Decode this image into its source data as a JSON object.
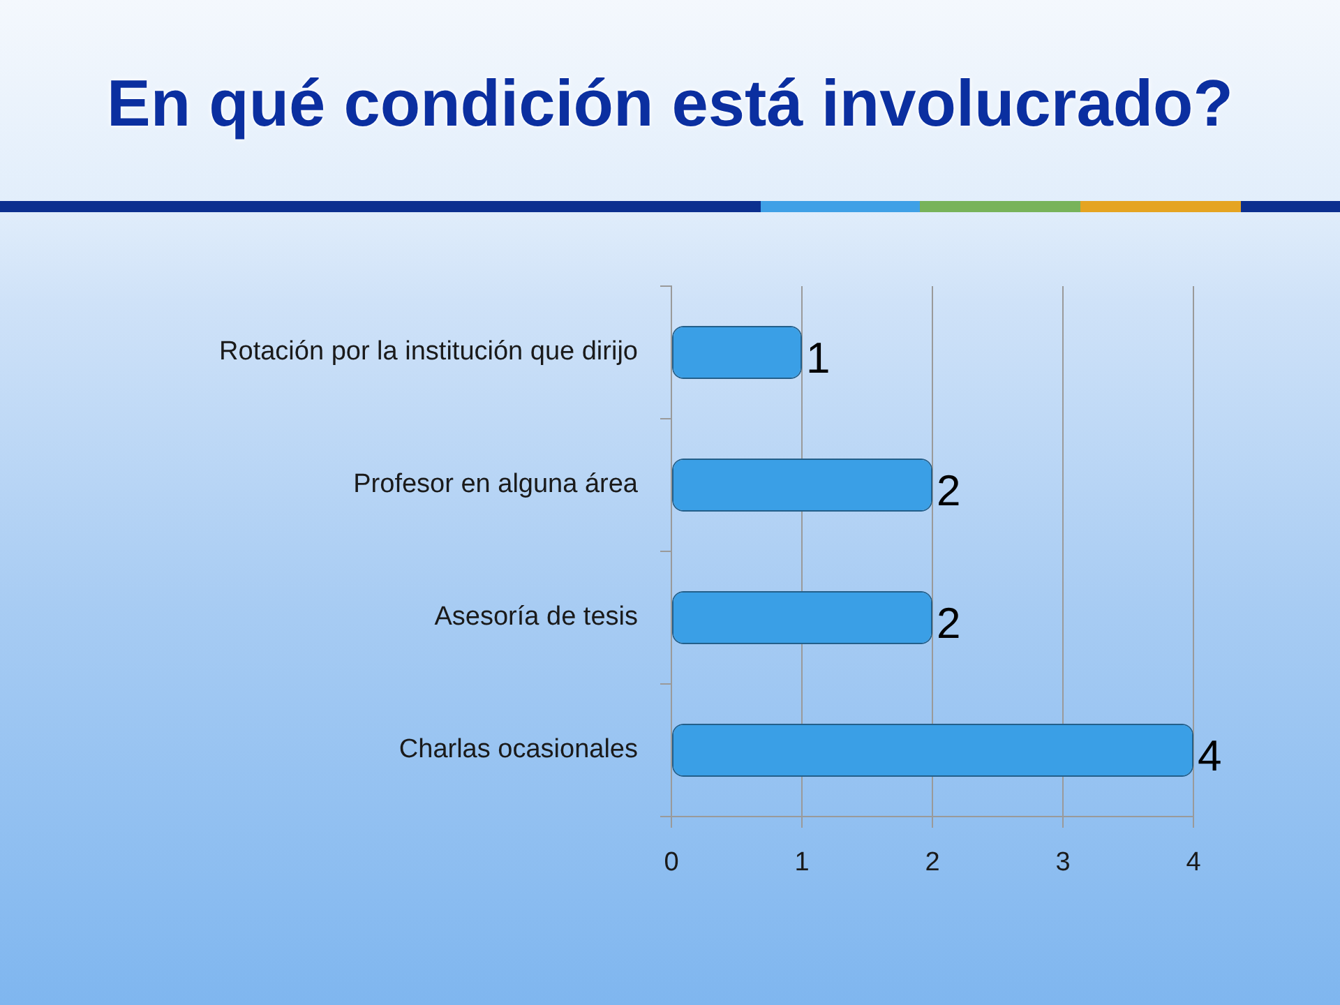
{
  "chart_data": {
    "type": "bar",
    "orientation": "horizontal",
    "title": "En qué condición está involucrado?",
    "categories": [
      "Rotación por la institución que dirijo",
      "Profesor en alguna área",
      "Asesoría de tesis",
      "Charlas ocasionales"
    ],
    "values": [
      1,
      2,
      2,
      4
    ],
    "color": "#3a9fe6",
    "xlim": [
      0,
      4
    ],
    "xticks": [
      0,
      1,
      2,
      3,
      4
    ],
    "grid": "x",
    "data_labels": true
  }
}
